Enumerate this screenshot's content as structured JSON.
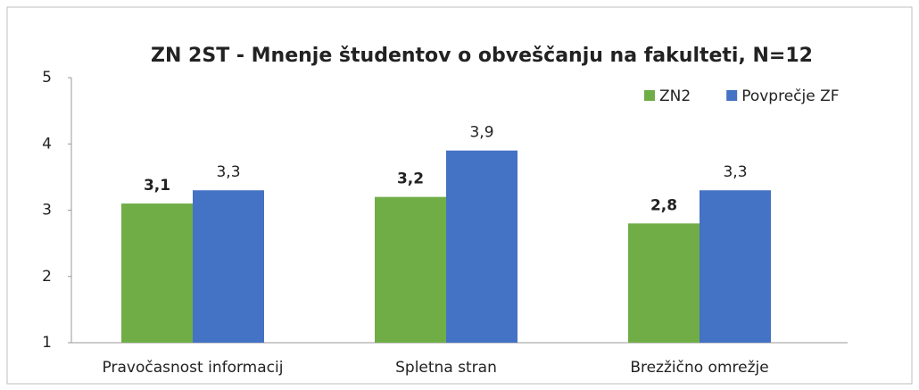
{
  "chart_data": {
    "type": "bar",
    "title": "ZN 2ST - Mnenje študentov o obveščanju na fakulteti, N=12",
    "categories": [
      "Pravočasnost informacij",
      "Spletna stran",
      "Brezžično omrežje"
    ],
    "series": [
      {
        "name": "ZN2",
        "color": "#70ad47",
        "values": [
          3.1,
          3.2,
          2.8
        ],
        "value_labels": [
          "3,1",
          "3,2",
          "2,8"
        ]
      },
      {
        "name": "Povprečje ZF",
        "color": "#4472c4",
        "values": [
          3.3,
          3.9,
          3.3
        ],
        "value_labels": [
          "3,3",
          "3,9",
          "3,3"
        ]
      }
    ],
    "ylim": [
      1,
      5
    ],
    "yticks": [
      1,
      2,
      3,
      4,
      5
    ],
    "grid": false
  }
}
